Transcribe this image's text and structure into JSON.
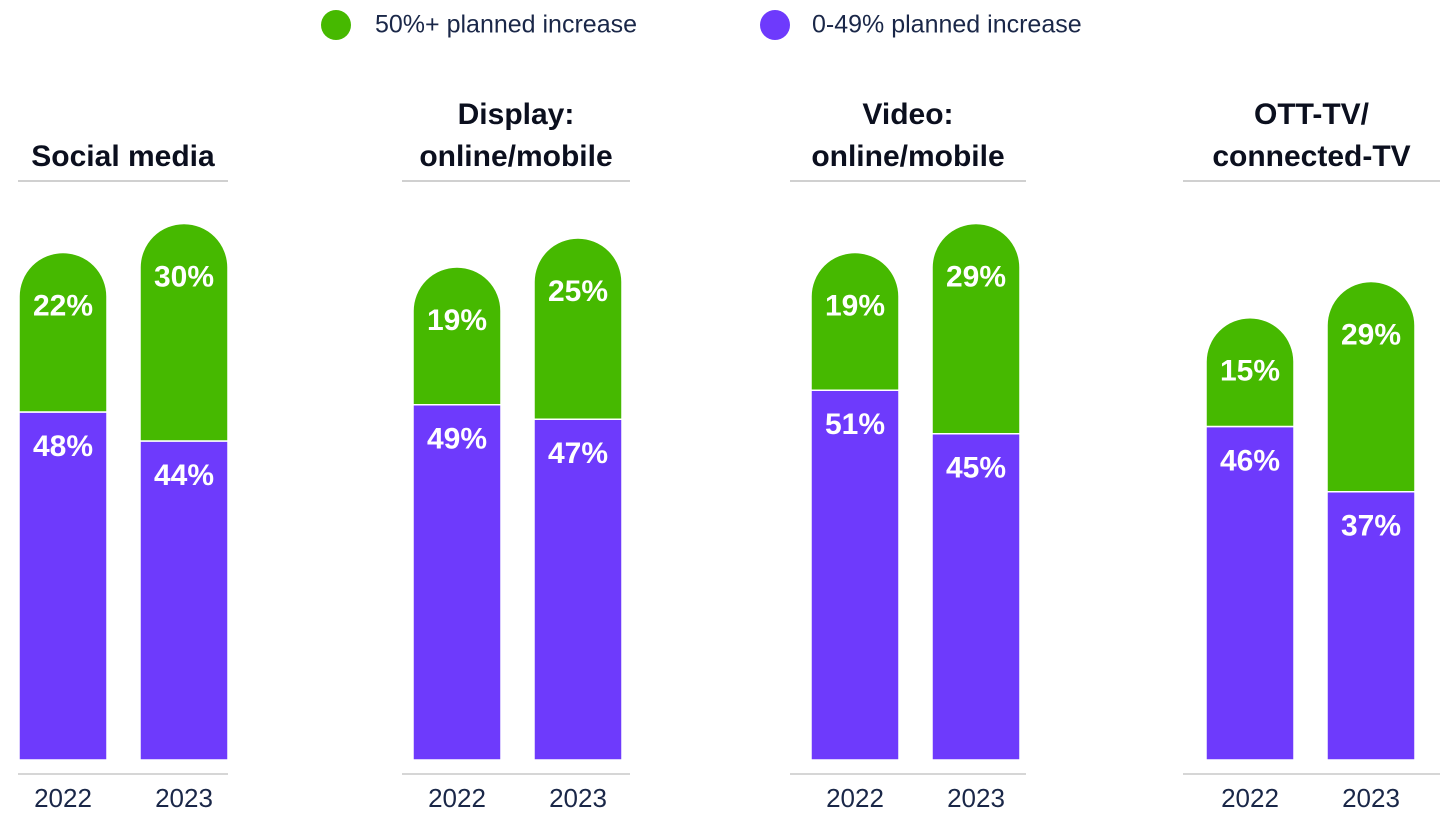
{
  "chart_data": [
    {
      "type": "bar",
      "stacked": true,
      "title": "Social media",
      "categories": [
        "2022",
        "2023"
      ],
      "ylim": [
        0,
        100
      ],
      "series": [
        {
          "name": "50%+ planned increase",
          "color": "#46b900",
          "values": [
            22,
            30
          ],
          "value_labels": [
            "22%",
            "30%"
          ]
        },
        {
          "name": "0-49% planned increase",
          "color": "#6e3afc",
          "values": [
            48,
            44
          ],
          "value_labels": [
            "48%",
            "44%"
          ]
        }
      ]
    },
    {
      "type": "bar",
      "stacked": true,
      "title": "Display:\nonline/mobile",
      "categories": [
        "2022",
        "2023"
      ],
      "ylim": [
        0,
        100
      ],
      "series": [
        {
          "name": "50%+ planned increase",
          "color": "#46b900",
          "values": [
            19,
            25
          ],
          "value_labels": [
            "19%",
            "25%"
          ]
        },
        {
          "name": "0-49% planned increase",
          "color": "#6e3afc",
          "values": [
            49,
            47
          ],
          "value_labels": [
            "49%",
            "47%"
          ]
        }
      ]
    },
    {
      "type": "bar",
      "stacked": true,
      "title": "Video:\nonline/mobile",
      "categories": [
        "2022",
        "2023"
      ],
      "ylim": [
        0,
        100
      ],
      "series": [
        {
          "name": "50%+ planned increase",
          "color": "#46b900",
          "values": [
            19,
            29
          ],
          "value_labels": [
            "19%",
            "29%"
          ]
        },
        {
          "name": "0-49% planned increase",
          "color": "#6e3afc",
          "values": [
            51,
            45
          ],
          "value_labels": [
            "51%",
            "45%"
          ]
        }
      ]
    },
    {
      "type": "bar",
      "stacked": true,
      "title": "OTT-TV/\nconnected-TV",
      "categories": [
        "2022",
        "2023"
      ],
      "ylim": [
        0,
        100
      ],
      "series": [
        {
          "name": "50%+ planned increase",
          "color": "#46b900",
          "values": [
            15,
            29
          ],
          "value_labels": [
            "15%",
            "29%"
          ]
        },
        {
          "name": "0-49% planned increase",
          "color": "#6e3afc",
          "values": [
            46,
            37
          ],
          "value_labels": [
            "46%",
            "37%"
          ]
        }
      ]
    }
  ]
}
